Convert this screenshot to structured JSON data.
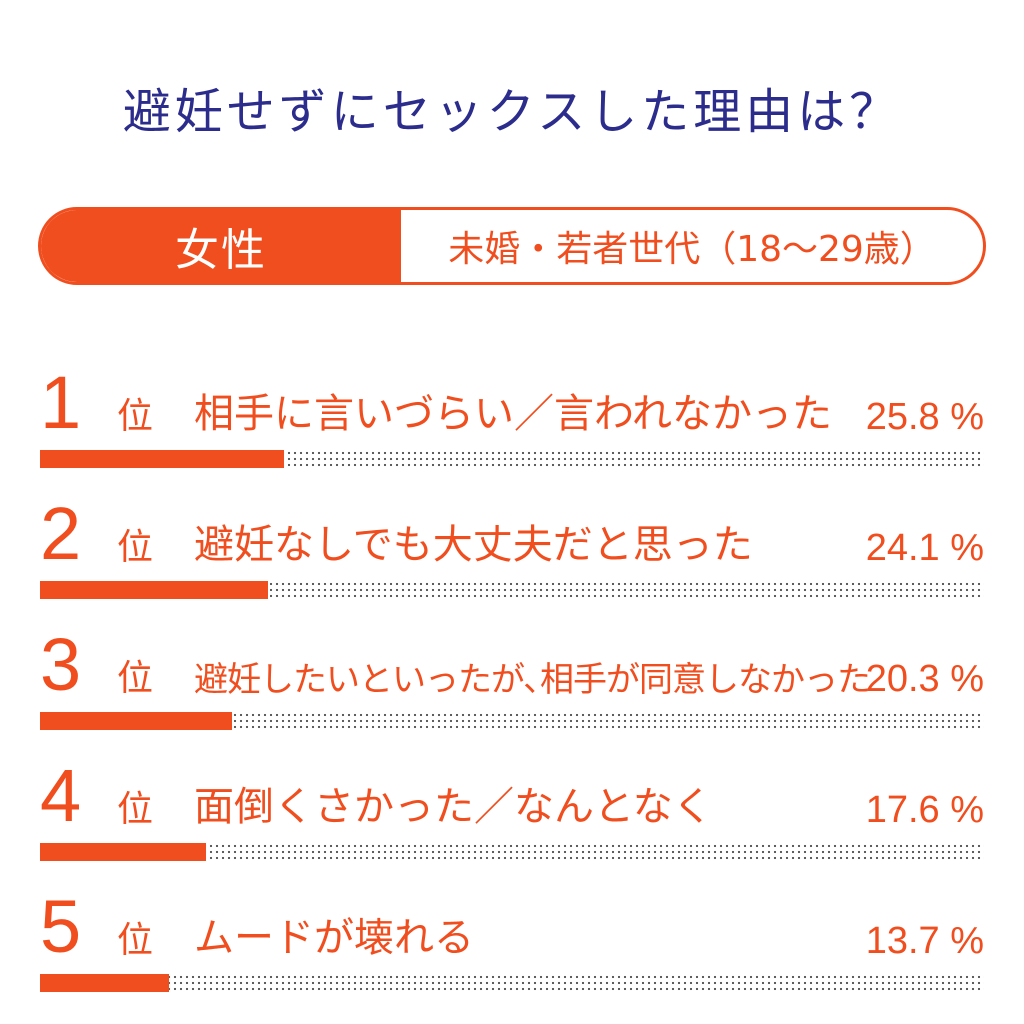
{
  "title": "避妊せずにセックスした理由は？",
  "header": {
    "left_label": "女性",
    "right_label": "未婚・若者世代（18～29歳）"
  },
  "colors": {
    "accent": "#f04e1e",
    "title": "#2b2c8c",
    "dots": "#555555"
  },
  "chart_data": {
    "type": "bar",
    "orientation": "horizontal",
    "unit": "%",
    "rank_unit": "位",
    "max_value": 100,
    "items": [
      {
        "rank": "1",
        "label": "相手に言いづらい／言われなかった",
        "value": 25.8,
        "value_text": "25.8 %"
      },
      {
        "rank": "2",
        "label": "避妊なしでも大丈夫だと思った",
        "value": 24.1,
        "value_text": "24.1 %"
      },
      {
        "rank": "3",
        "label": "避妊したいといったが､相手が同意しなかった",
        "value": 20.3,
        "value_text": "20.3 %"
      },
      {
        "rank": "4",
        "label": "面倒くさかった／なんとなく",
        "value": 17.6,
        "value_text": "17.6 %"
      },
      {
        "rank": "5",
        "label": "ムードが壊れる",
        "value": 13.7,
        "value_text": "13.7 %"
      }
    ]
  }
}
